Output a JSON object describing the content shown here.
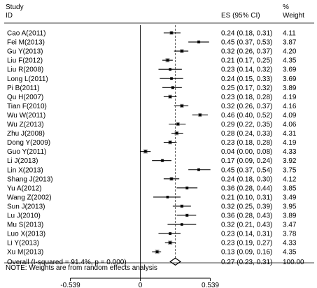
{
  "headers": {
    "study": "Study",
    "id": "ID",
    "es": "ES (95% CI)",
    "pct": "%",
    "weight": "Weight"
  },
  "note": "NOTE: Weights are from random effects analysis",
  "chart_data": {
    "type": "forest",
    "xaxis": {
      "ticks": [
        -0.539,
        0,
        0.539
      ],
      "tick_labels": [
        "-0.539",
        "0",
        "0.539"
      ],
      "range": [
        -0.539,
        0.539
      ]
    },
    "studies": [
      {
        "label": "Cao A(2011)",
        "es": 0.24,
        "lo": 0.18,
        "hi": 0.31,
        "es_text": "0.24 (0.18, 0.31)",
        "weight": "4.11"
      },
      {
        "label": "Fei M(2013)",
        "es": 0.45,
        "lo": 0.37,
        "hi": 0.53,
        "es_text": "0.45 (0.37, 0.53)",
        "weight": "3.87"
      },
      {
        "label": "Gu Y(2013)",
        "es": 0.32,
        "lo": 0.26,
        "hi": 0.37,
        "es_text": "0.32 (0.26, 0.37)",
        "weight": "4.20"
      },
      {
        "label": "Liu F(2012)",
        "es": 0.21,
        "lo": 0.17,
        "hi": 0.25,
        "es_text": "0.21 (0.17, 0.25)",
        "weight": "4.35"
      },
      {
        "label": "Liu R(2008)",
        "es": 0.23,
        "lo": 0.14,
        "hi": 0.32,
        "es_text": "0.23 (0.14, 0.32)",
        "weight": "3.69"
      },
      {
        "label": "Long L(2011)",
        "es": 0.24,
        "lo": 0.15,
        "hi": 0.33,
        "es_text": "0.24 (0.15, 0.33)",
        "weight": "3.69"
      },
      {
        "label": "Pi B(2011)",
        "es": 0.25,
        "lo": 0.17,
        "hi": 0.32,
        "es_text": "0.25 (0.17, 0.32)",
        "weight": "3.89"
      },
      {
        "label": "Qu H(2007)",
        "es": 0.23,
        "lo": 0.18,
        "hi": 0.28,
        "es_text": "0.23 (0.18, 0.28)",
        "weight": "4.19"
      },
      {
        "label": "Tian F(2010)",
        "es": 0.32,
        "lo": 0.26,
        "hi": 0.37,
        "es_text": "0.32 (0.26, 0.37)",
        "weight": "4.16"
      },
      {
        "label": "Wu W(2011)",
        "es": 0.46,
        "lo": 0.4,
        "hi": 0.52,
        "es_text": "0.46 (0.40, 0.52)",
        "weight": "4.09"
      },
      {
        "label": "Wu Z(2013)",
        "es": 0.29,
        "lo": 0.22,
        "hi": 0.35,
        "es_text": "0.29 (0.22, 0.35)",
        "weight": "4.06"
      },
      {
        "label": "Zhu J(2008)",
        "es": 0.28,
        "lo": 0.24,
        "hi": 0.33,
        "es_text": "0.28 (0.24, 0.33)",
        "weight": "4.31"
      },
      {
        "label": "Dong Y(2009)",
        "es": 0.23,
        "lo": 0.18,
        "hi": 0.28,
        "es_text": "0.23 (0.18, 0.28)",
        "weight": "4.19"
      },
      {
        "label": "Guo Y(2011)",
        "es": 0.04,
        "lo": 0.0,
        "hi": 0.08,
        "es_text": "0.04 (0.00, 0.08)",
        "weight": "4.33"
      },
      {
        "label": "Li J(2013)",
        "es": 0.17,
        "lo": 0.09,
        "hi": 0.24,
        "es_text": "0.17 (0.09, 0.24)",
        "weight": "3.92"
      },
      {
        "label": "Lin X(2013)",
        "es": 0.45,
        "lo": 0.37,
        "hi": 0.54,
        "es_text": "0.45 (0.37, 0.54)",
        "weight": "3.75"
      },
      {
        "label": "Shang J(2013)",
        "es": 0.24,
        "lo": 0.18,
        "hi": 0.3,
        "es_text": "0.24 (0.18, 0.30)",
        "weight": "4.12"
      },
      {
        "label": "Yu A(2012)",
        "es": 0.36,
        "lo": 0.28,
        "hi": 0.44,
        "es_text": "0.36 (0.28, 0.44)",
        "weight": "3.85"
      },
      {
        "label": "Wang Z(2002)",
        "es": 0.21,
        "lo": 0.1,
        "hi": 0.31,
        "es_text": "0.21 (0.10, 0.31)",
        "weight": "3.49"
      },
      {
        "label": "Sun J(2013)",
        "es": 0.32,
        "lo": 0.25,
        "hi": 0.39,
        "es_text": "0.32 (0.25, 0.39)",
        "weight": "3.95"
      },
      {
        "label": "Lu J(2010)",
        "es": 0.36,
        "lo": 0.28,
        "hi": 0.43,
        "es_text": "0.36 (0.28, 0.43)",
        "weight": "3.89"
      },
      {
        "label": "Mu S(2013)",
        "es": 0.32,
        "lo": 0.21,
        "hi": 0.43,
        "es_text": "0.32 (0.21, 0.43)",
        "weight": "3.47"
      },
      {
        "label": "Luo X(2013)",
        "es": 0.23,
        "lo": 0.14,
        "hi": 0.31,
        "es_text": "0.23 (0.14, 0.31)",
        "weight": "3.78"
      },
      {
        "label": "Li Y(2013)",
        "es": 0.23,
        "lo": 0.19,
        "hi": 0.27,
        "es_text": "0.23 (0.19, 0.27)",
        "weight": "4.33"
      },
      {
        "label": "Xu M(2013)",
        "es": 0.13,
        "lo": 0.09,
        "hi": 0.16,
        "es_text": "0.13 (0.09, 0.16)",
        "weight": "4.35"
      }
    ],
    "overall": {
      "label": "Overall  (I-squared = 91.4%, p = 0.000)",
      "es": 0.27,
      "lo": 0.23,
      "hi": 0.31,
      "es_text": "0.27 (0.23, 0.31)",
      "weight": "100.00"
    }
  }
}
